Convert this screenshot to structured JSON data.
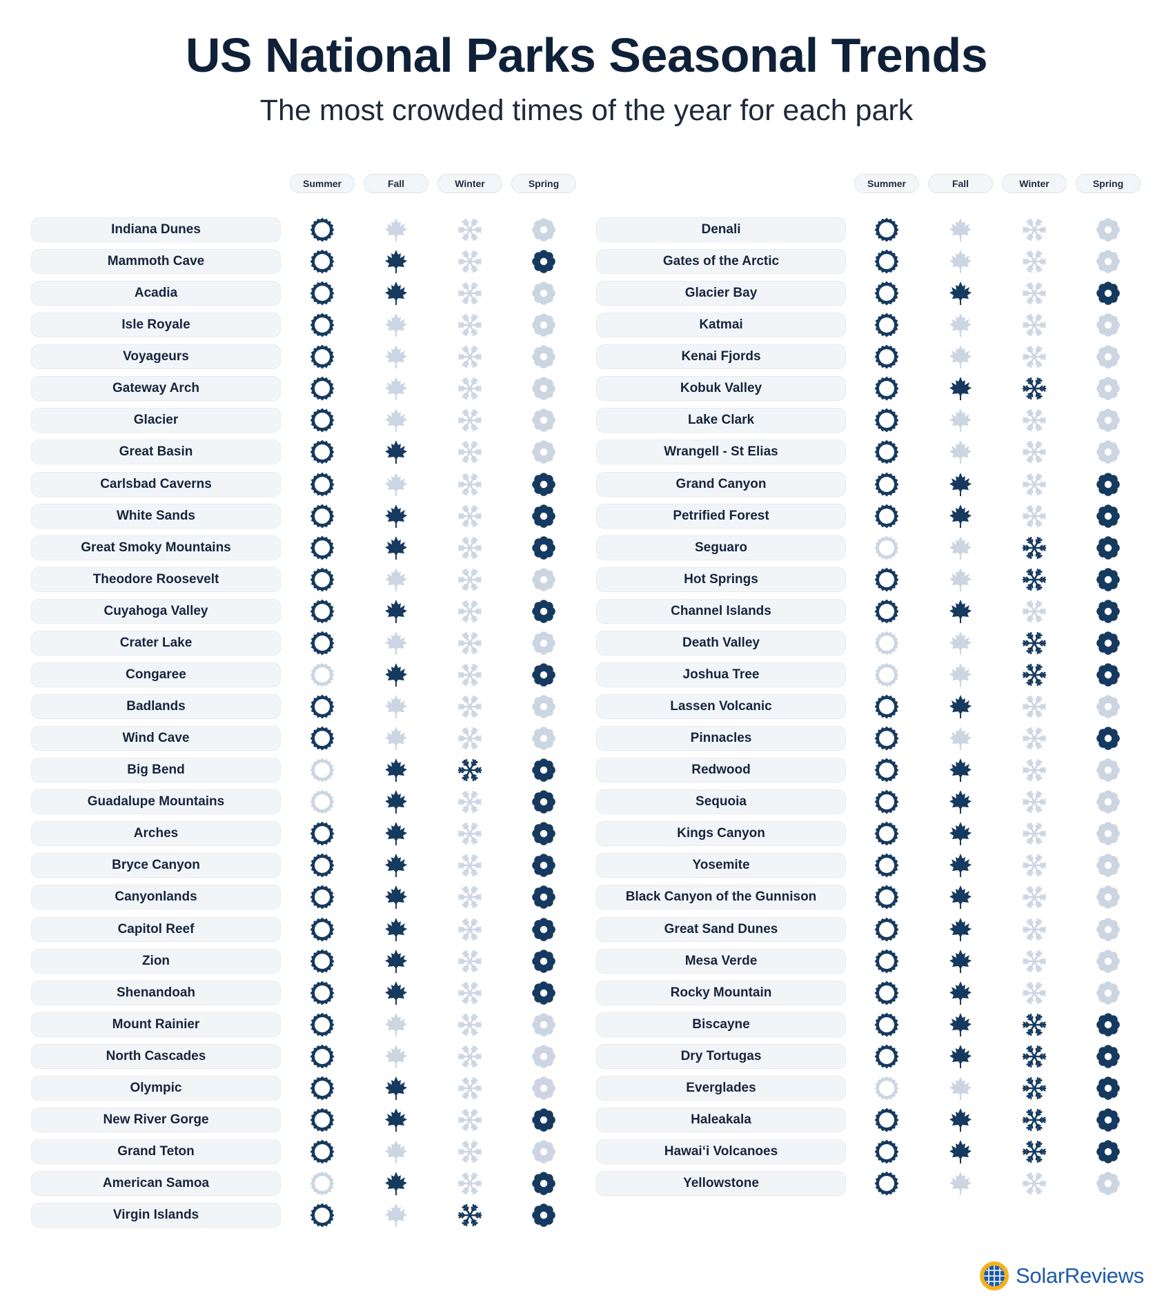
{
  "title": "US National Parks Seasonal Trends",
  "subtitle": "The most crowded times of the year for each park",
  "brand": "SolarReviews",
  "colors": {
    "active": "#163a5f",
    "inactive": "#cbd6e2",
    "pill": "#f2f5f8"
  },
  "icons": {
    "Summer": "sun-icon",
    "Fall": "maple-leaf-icon",
    "Winter": "snowflake-icon",
    "Spring": "flower-icon"
  },
  "chart_data": {
    "type": "table",
    "columns": [
      "Summer",
      "Fall",
      "Winter",
      "Spring"
    ],
    "parks": [
      {
        "name": "Indiana Dunes",
        "seasons": [
          1,
          0,
          0,
          0
        ]
      },
      {
        "name": "Mammoth Cave",
        "seasons": [
          1,
          1,
          0,
          1
        ]
      },
      {
        "name": "Acadia",
        "seasons": [
          1,
          1,
          0,
          0
        ]
      },
      {
        "name": "Isle Royale",
        "seasons": [
          1,
          0,
          0,
          0
        ]
      },
      {
        "name": "Voyageurs",
        "seasons": [
          1,
          0,
          0,
          0
        ]
      },
      {
        "name": "Gateway Arch",
        "seasons": [
          1,
          0,
          0,
          0
        ]
      },
      {
        "name": "Glacier",
        "seasons": [
          1,
          0,
          0,
          0
        ]
      },
      {
        "name": "Great Basin",
        "seasons": [
          1,
          1,
          0,
          0
        ]
      },
      {
        "name": "Carlsbad Caverns",
        "seasons": [
          1,
          0,
          0,
          1
        ]
      },
      {
        "name": "White Sands",
        "seasons": [
          1,
          1,
          0,
          1
        ]
      },
      {
        "name": "Great Smoky Mountains",
        "seasons": [
          1,
          1,
          0,
          1
        ]
      },
      {
        "name": "Theodore Roosevelt",
        "seasons": [
          1,
          0,
          0,
          0
        ]
      },
      {
        "name": "Cuyahoga Valley",
        "seasons": [
          1,
          1,
          0,
          1
        ]
      },
      {
        "name": "Crater Lake",
        "seasons": [
          1,
          0,
          0,
          0
        ]
      },
      {
        "name": "Congaree",
        "seasons": [
          0,
          1,
          0,
          1
        ]
      },
      {
        "name": "Badlands",
        "seasons": [
          1,
          0,
          0,
          0
        ]
      },
      {
        "name": "Wind Cave",
        "seasons": [
          1,
          0,
          0,
          0
        ]
      },
      {
        "name": "Big Bend",
        "seasons": [
          0,
          1,
          1,
          1
        ]
      },
      {
        "name": "Guadalupe Mountains",
        "seasons": [
          0,
          1,
          0,
          1
        ]
      },
      {
        "name": "Arches",
        "seasons": [
          1,
          1,
          0,
          1
        ]
      },
      {
        "name": "Bryce Canyon",
        "seasons": [
          1,
          1,
          0,
          1
        ]
      },
      {
        "name": "Canyonlands",
        "seasons": [
          1,
          1,
          0,
          1
        ]
      },
      {
        "name": "Capitol Reef",
        "seasons": [
          1,
          1,
          0,
          1
        ]
      },
      {
        "name": "Zion",
        "seasons": [
          1,
          1,
          0,
          1
        ]
      },
      {
        "name": "Shenandoah",
        "seasons": [
          1,
          1,
          0,
          1
        ]
      },
      {
        "name": "Mount Rainier",
        "seasons": [
          1,
          0,
          0,
          0
        ]
      },
      {
        "name": "North Cascades",
        "seasons": [
          1,
          0,
          0,
          0
        ]
      },
      {
        "name": "Olympic",
        "seasons": [
          1,
          1,
          0,
          0
        ]
      },
      {
        "name": "New River Gorge",
        "seasons": [
          1,
          1,
          0,
          1
        ]
      },
      {
        "name": "Grand Teton",
        "seasons": [
          1,
          0,
          0,
          0
        ]
      },
      {
        "name": "American Samoa",
        "seasons": [
          0,
          1,
          0,
          1
        ]
      },
      {
        "name": "Virgin Islands",
        "seasons": [
          1,
          0,
          1,
          1
        ]
      },
      {
        "name": "Denali",
        "seasons": [
          1,
          0,
          0,
          0
        ]
      },
      {
        "name": "Gates of the Arctic",
        "seasons": [
          1,
          0,
          0,
          0
        ]
      },
      {
        "name": "Glacier Bay",
        "seasons": [
          1,
          1,
          0,
          1
        ]
      },
      {
        "name": "Katmai",
        "seasons": [
          1,
          0,
          0,
          0
        ]
      },
      {
        "name": "Kenai Fjords",
        "seasons": [
          1,
          0,
          0,
          0
        ]
      },
      {
        "name": "Kobuk Valley",
        "seasons": [
          1,
          1,
          1,
          0
        ]
      },
      {
        "name": "Lake Clark",
        "seasons": [
          1,
          0,
          0,
          0
        ]
      },
      {
        "name": "Wrangell - St Elias",
        "seasons": [
          1,
          0,
          0,
          0
        ]
      },
      {
        "name": "Grand Canyon",
        "seasons": [
          1,
          1,
          0,
          1
        ]
      },
      {
        "name": "Petrified Forest",
        "seasons": [
          1,
          1,
          0,
          1
        ]
      },
      {
        "name": "Seguaro",
        "seasons": [
          0,
          0,
          1,
          1
        ]
      },
      {
        "name": "Hot Springs",
        "seasons": [
          1,
          0,
          1,
          1
        ]
      },
      {
        "name": "Channel Islands",
        "seasons": [
          1,
          1,
          0,
          1
        ]
      },
      {
        "name": "Death Valley",
        "seasons": [
          0,
          0,
          1,
          1
        ]
      },
      {
        "name": "Joshua Tree",
        "seasons": [
          0,
          0,
          1,
          1
        ]
      },
      {
        "name": "Lassen Volcanic",
        "seasons": [
          1,
          1,
          0,
          0
        ]
      },
      {
        "name": "Pinnacles",
        "seasons": [
          1,
          0,
          0,
          1
        ]
      },
      {
        "name": "Redwood",
        "seasons": [
          1,
          1,
          0,
          0
        ]
      },
      {
        "name": "Sequoia",
        "seasons": [
          1,
          1,
          0,
          0
        ]
      },
      {
        "name": "Kings Canyon",
        "seasons": [
          1,
          1,
          0,
          0
        ]
      },
      {
        "name": "Yosemite",
        "seasons": [
          1,
          1,
          0,
          0
        ]
      },
      {
        "name": "Black Canyon of the  Gunnison",
        "seasons": [
          1,
          1,
          0,
          0
        ]
      },
      {
        "name": "Great Sand Dunes",
        "seasons": [
          1,
          1,
          0,
          0
        ]
      },
      {
        "name": "Mesa Verde",
        "seasons": [
          1,
          1,
          0,
          0
        ]
      },
      {
        "name": "Rocky Mountain",
        "seasons": [
          1,
          1,
          0,
          0
        ]
      },
      {
        "name": "Biscayne",
        "seasons": [
          1,
          1,
          1,
          1
        ]
      },
      {
        "name": "Dry Tortugas",
        "seasons": [
          1,
          1,
          1,
          1
        ]
      },
      {
        "name": "Everglades",
        "seasons": [
          0,
          0,
          1,
          1
        ]
      },
      {
        "name": "Haleakala",
        "seasons": [
          1,
          1,
          1,
          1
        ]
      },
      {
        "name": "Hawai‘i Volcanoes",
        "seasons": [
          1,
          1,
          1,
          1
        ]
      },
      {
        "name": "Yellowstone",
        "seasons": [
          1,
          0,
          0,
          0
        ]
      }
    ]
  }
}
